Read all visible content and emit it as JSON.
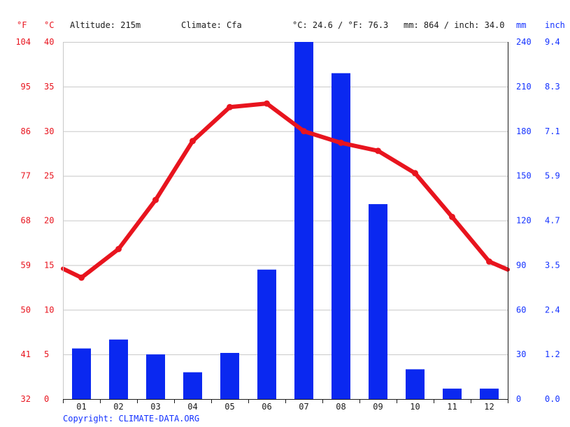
{
  "header": {
    "unit_f": "°F",
    "unit_c": "°C",
    "altitude": "Altitude: 215m",
    "climate": "Climate: Cfa",
    "avg_temp": "°C: 24.6 / °F: 76.3",
    "precip_total": "mm: 864 / inch: 34.0",
    "unit_mm": "mm",
    "unit_inch": "inch"
  },
  "copyright": "Copyright: CLIMATE-DATA.ORG",
  "colors": {
    "temp": "#e8141e",
    "precip": "#0a28f0",
    "axis_blue": "#1432ff"
  },
  "chart_data": {
    "type": "bar+line",
    "categories": [
      "01",
      "02",
      "03",
      "04",
      "05",
      "06",
      "07",
      "08",
      "09",
      "10",
      "11",
      "12"
    ],
    "series": [
      {
        "name": "precipitation",
        "unit": "mm",
        "type": "bar",
        "values": [
          34,
          40,
          30,
          18,
          31,
          87,
          240,
          219,
          131,
          20,
          7,
          7
        ]
      },
      {
        "name": "temperature",
        "unit": "°C",
        "type": "line",
        "values": [
          13.6,
          16.8,
          22.3,
          28.9,
          32.7,
          33.1,
          30.0,
          28.7,
          27.8,
          25.3,
          20.4,
          15.4
        ],
        "edge_start": 14.6,
        "edge_end": 14.5
      }
    ],
    "y_left_celsius": {
      "ticks": [
        "0",
        "5",
        "10",
        "15",
        "20",
        "25",
        "30",
        "35",
        "40"
      ],
      "ylim": [
        0,
        40
      ]
    },
    "y_left_fahrenheit": {
      "ticks": [
        "32",
        "41",
        "50",
        "59",
        "68",
        "77",
        "86",
        "95",
        "104"
      ]
    },
    "y_right_mm": {
      "ticks": [
        "0",
        "30",
        "60",
        "90",
        "120",
        "150",
        "180",
        "210",
        "240"
      ],
      "ylim": [
        0,
        240
      ]
    },
    "y_right_inch": {
      "ticks": [
        "0.0",
        "1.2",
        "2.4",
        "3.5",
        "4.7",
        "5.9",
        "7.1",
        "8.3",
        "9.4"
      ]
    },
    "grid": true
  }
}
